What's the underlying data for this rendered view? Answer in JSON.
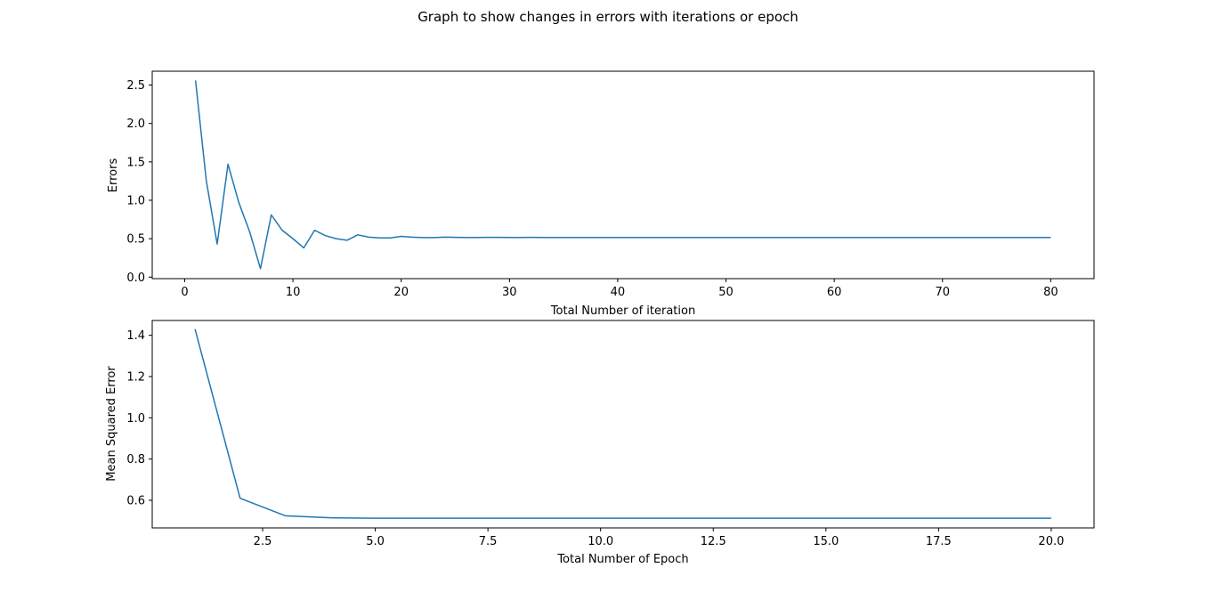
{
  "figure": {
    "title": "Graph to show changes in errors with iterations or epoch"
  },
  "chart_data": [
    {
      "type": "line",
      "xlabel": "Total Number of iteration",
      "ylabel": "Errors",
      "xlim": [
        -3,
        84
      ],
      "ylim": [
        -0.02,
        2.68
      ],
      "xticks": [
        0,
        10,
        20,
        30,
        40,
        50,
        60,
        70,
        80
      ],
      "xtick_labels": [
        "0",
        "10",
        "20",
        "30",
        "40",
        "50",
        "60",
        "70",
        "80"
      ],
      "yticks": [
        0.0,
        0.5,
        1.0,
        1.5,
        2.0,
        2.5
      ],
      "ytick_labels": [
        "0.0",
        "0.5",
        "1.0",
        "1.5",
        "2.0",
        "2.5"
      ],
      "grid": false,
      "series": [
        {
          "color": "#1f77b4",
          "x": [
            1,
            2,
            3,
            4,
            5,
            6,
            7,
            8,
            9,
            10,
            11,
            12,
            13,
            14,
            15,
            16,
            17,
            18,
            19,
            20,
            21,
            22,
            23,
            24,
            25,
            26,
            27,
            28,
            29,
            30,
            31,
            32,
            33,
            34,
            35,
            36,
            37,
            38,
            39,
            40,
            41,
            42,
            43,
            44,
            45,
            46,
            47,
            48,
            49,
            50,
            51,
            52,
            53,
            54,
            55,
            56,
            57,
            58,
            59,
            60,
            61,
            62,
            63,
            64,
            65,
            66,
            67,
            68,
            69,
            70,
            71,
            72,
            73,
            74,
            75,
            76,
            77,
            78,
            79,
            80
          ],
          "y": [
            2.56,
            1.25,
            0.43,
            1.47,
            0.97,
            0.59,
            0.11,
            0.81,
            0.61,
            0.5,
            0.38,
            0.61,
            0.54,
            0.5,
            0.48,
            0.55,
            0.52,
            0.51,
            0.51,
            0.53,
            0.52,
            0.515,
            0.515,
            0.52,
            0.518,
            0.516,
            0.516,
            0.517,
            0.517,
            0.516,
            0.516,
            0.517,
            0.516,
            0.516,
            0.516,
            0.516,
            0.516,
            0.516,
            0.516,
            0.516,
            0.516,
            0.516,
            0.516,
            0.516,
            0.516,
            0.516,
            0.516,
            0.516,
            0.516,
            0.516,
            0.516,
            0.516,
            0.516,
            0.516,
            0.516,
            0.516,
            0.516,
            0.516,
            0.516,
            0.516,
            0.516,
            0.516,
            0.516,
            0.516,
            0.516,
            0.516,
            0.516,
            0.516,
            0.516,
            0.516,
            0.516,
            0.516,
            0.516,
            0.516,
            0.516,
            0.516,
            0.516,
            0.516,
            0.516,
            0.516
          ]
        }
      ]
    },
    {
      "type": "line",
      "xlabel": "Total Number of Epoch",
      "ylabel": "Mean Squared Error",
      "xlim": [
        0.05,
        20.95
      ],
      "ylim": [
        0.466,
        1.472
      ],
      "xticks": [
        2.5,
        5.0,
        7.5,
        10.0,
        12.5,
        15.0,
        17.5,
        20.0
      ],
      "xtick_labels": [
        "2.5",
        "5.0",
        "7.5",
        "10.0",
        "12.5",
        "15.0",
        "17.5",
        "20.0"
      ],
      "yticks": [
        0.6,
        0.8,
        1.0,
        1.2,
        1.4
      ],
      "ytick_labels": [
        "0.6",
        "0.8",
        "1.0",
        "1.2",
        "1.4"
      ],
      "grid": false,
      "series": [
        {
          "color": "#1f77b4",
          "x": [
            1,
            2,
            3,
            4,
            5,
            6,
            7,
            8,
            9,
            10,
            11,
            12,
            13,
            14,
            15,
            16,
            17,
            18,
            19,
            20
          ],
          "y": [
            1.43,
            0.61,
            0.525,
            0.515,
            0.513,
            0.513,
            0.513,
            0.513,
            0.513,
            0.513,
            0.513,
            0.513,
            0.513,
            0.513,
            0.513,
            0.513,
            0.513,
            0.513,
            0.513,
            0.513
          ]
        }
      ]
    }
  ]
}
